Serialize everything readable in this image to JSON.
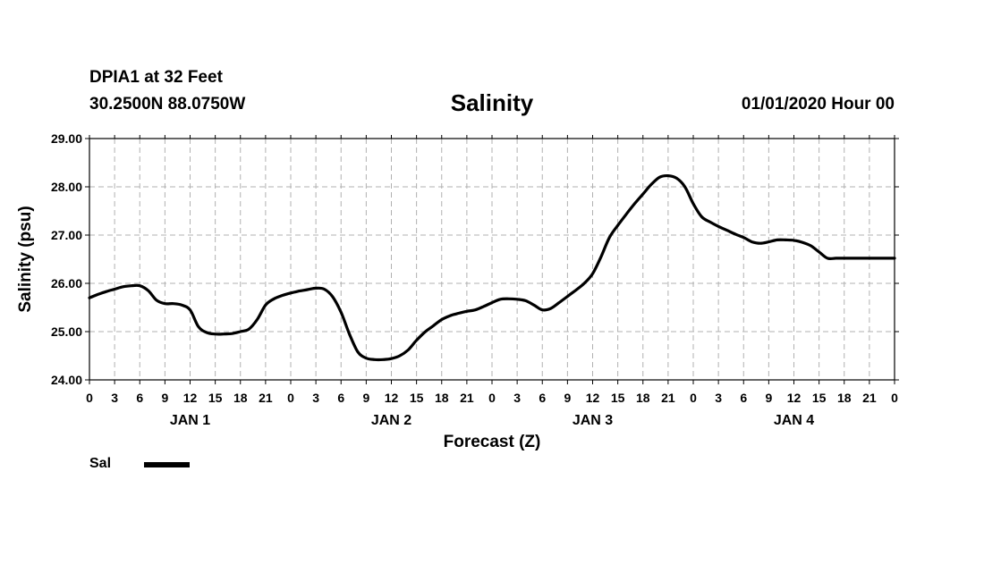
{
  "header": {
    "station": "DPIA1 at 32 Feet",
    "coords": "30.2500N 88.0750W",
    "title": "Salinity",
    "datetime": "01/01/2020 Hour 00"
  },
  "chart_data": {
    "type": "line",
    "title": "Salinity",
    "xlabel": "Forecast (Z)",
    "ylabel": "Salinity (psu)",
    "ylim": [
      24.0,
      29.0
    ],
    "xlim": [
      0,
      96
    ],
    "y_ticks": [
      "24.00",
      "25.00",
      "26.00",
      "27.00",
      "28.00",
      "29.00"
    ],
    "x_ticks": [
      "0",
      "3",
      "6",
      "9",
      "12",
      "15",
      "18",
      "21",
      "0",
      "3",
      "6",
      "9",
      "12",
      "15",
      "18",
      "21",
      "0",
      "3",
      "6",
      "9",
      "12",
      "15",
      "18",
      "21",
      "0",
      "3",
      "6",
      "9",
      "12",
      "15",
      "18",
      "21",
      "0"
    ],
    "day_labels": [
      "JAN 1",
      "JAN 2",
      "JAN 3",
      "JAN 4"
    ],
    "grid": true,
    "legend": "bottom-left",
    "series": [
      {
        "name": "Sal",
        "color": "#000000",
        "x": [
          0,
          1,
          2,
          3,
          4,
          5,
          6,
          7,
          8,
          9,
          10,
          11,
          12,
          13,
          14,
          15,
          16,
          17,
          18,
          19,
          20,
          21,
          22,
          23,
          24,
          25,
          26,
          27,
          28,
          29,
          30,
          31,
          32,
          33,
          34,
          35,
          36,
          37,
          38,
          39,
          40,
          41,
          42,
          43,
          44,
          45,
          46,
          47,
          48,
          49,
          50,
          51,
          52,
          53,
          54,
          55,
          56,
          57,
          58,
          59,
          60,
          61,
          62,
          63,
          64,
          65,
          66,
          67,
          68,
          69,
          70,
          71,
          72,
          73,
          74,
          75,
          76,
          77,
          78,
          79,
          80,
          81,
          82,
          83,
          84,
          85,
          86,
          87,
          88,
          89,
          90,
          91,
          92,
          93,
          94,
          95,
          96
        ],
        "values": [
          25.7,
          25.77,
          25.83,
          25.88,
          25.93,
          25.95,
          25.95,
          25.85,
          25.65,
          25.58,
          25.58,
          25.55,
          25.45,
          25.1,
          24.98,
          24.95,
          24.95,
          24.96,
          25.0,
          25.05,
          25.25,
          25.55,
          25.68,
          25.75,
          25.8,
          25.84,
          25.87,
          25.9,
          25.88,
          25.72,
          25.4,
          24.95,
          24.58,
          24.45,
          24.42,
          24.42,
          24.44,
          24.5,
          24.62,
          24.82,
          24.99,
          25.12,
          25.25,
          25.33,
          25.38,
          25.42,
          25.45,
          25.52,
          25.6,
          25.67,
          25.68,
          25.67,
          25.64,
          25.55,
          25.45,
          25.48,
          25.6,
          25.73,
          25.86,
          26.0,
          26.2,
          26.55,
          26.95,
          27.2,
          27.43,
          27.65,
          27.85,
          28.05,
          28.2,
          28.23,
          28.18,
          28.0,
          27.65,
          27.38,
          27.27,
          27.18,
          27.1,
          27.02,
          26.95,
          26.86,
          26.83,
          26.86,
          26.9,
          26.9,
          26.89,
          26.85,
          26.78,
          26.65,
          26.52,
          26.52,
          26.52,
          26.52,
          26.52,
          26.52,
          26.52,
          26.52,
          26.52
        ]
      }
    ]
  }
}
